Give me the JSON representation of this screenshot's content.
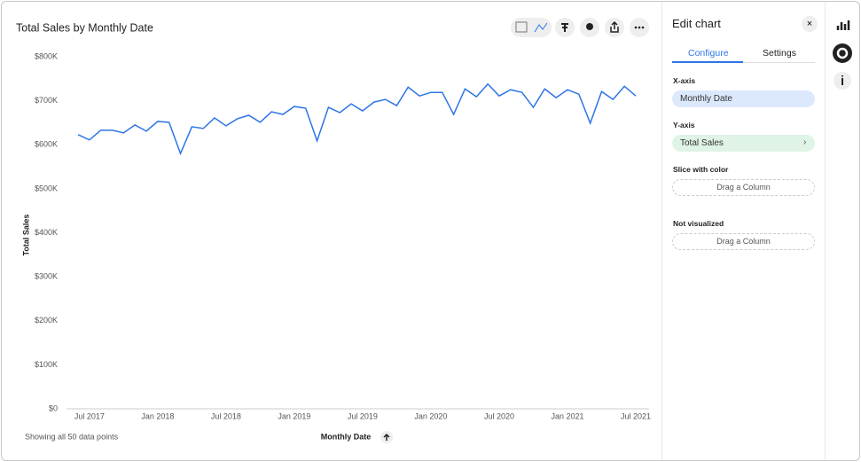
{
  "chart_data": {
    "type": "line",
    "title": "Total Sales by Monthly Date",
    "x": [
      "2017-06",
      "2017-07",
      "2017-08",
      "2017-09",
      "2017-10",
      "2017-11",
      "2017-12",
      "2018-01",
      "2018-02",
      "2018-03",
      "2018-04",
      "2018-05",
      "2018-06",
      "2018-07",
      "2018-08",
      "2018-09",
      "2018-10",
      "2018-11",
      "2018-12",
      "2019-01",
      "2019-02",
      "2019-03",
      "2019-04",
      "2019-05",
      "2019-06",
      "2019-07",
      "2019-08",
      "2019-09",
      "2019-10",
      "2019-11",
      "2019-12",
      "2020-01",
      "2020-02",
      "2020-03",
      "2020-04",
      "2020-05",
      "2020-06",
      "2020-07",
      "2020-08",
      "2020-09",
      "2020-10",
      "2020-11",
      "2020-12",
      "2021-01",
      "2021-02",
      "2021-03",
      "2021-04",
      "2021-05",
      "2021-06",
      "2021-07"
    ],
    "values": [
      623000,
      611000,
      633000,
      633000,
      627000,
      645000,
      631000,
      653000,
      651000,
      580000,
      641000,
      637000,
      661000,
      643000,
      659000,
      667000,
      651000,
      675000,
      669000,
      687000,
      683000,
      609000,
      685000,
      673000,
      693000,
      677000,
      697000,
      703000,
      689000,
      731000,
      711000,
      719000,
      719000,
      669000,
      727000,
      709000,
      738000,
      711000,
      725000,
      719000,
      685000,
      727000,
      707000,
      725000,
      715000,
      649000,
      721000,
      703000,
      733000,
      711000
    ],
    "color": "#2e75e6",
    "xlim": [
      "2017-06",
      "2021-07"
    ],
    "xticks": [
      {
        "value": "2017-07",
        "label": "Jul 2017"
      },
      {
        "value": "2018-01",
        "label": "Jan 2018"
      },
      {
        "value": "2018-07",
        "label": "Jul 2018"
      },
      {
        "value": "2019-01",
        "label": "Jan 2019"
      },
      {
        "value": "2019-07",
        "label": "Jul 2019"
      },
      {
        "value": "2020-01",
        "label": "Jan 2020"
      },
      {
        "value": "2020-07",
        "label": "Jul 2020"
      },
      {
        "value": "2021-01",
        "label": "Jan 2021"
      },
      {
        "value": "2021-07",
        "label": "Jul 2021"
      }
    ],
    "ylim": [
      0,
      800000
    ],
    "yticks": [
      {
        "value": 0,
        "label": "$0"
      },
      {
        "value": 100000,
        "label": "$100K"
      },
      {
        "value": 200000,
        "label": "$200K"
      },
      {
        "value": 300000,
        "label": "$300K"
      },
      {
        "value": 400000,
        "label": "$400K"
      },
      {
        "value": 500000,
        "label": "$500K"
      },
      {
        "value": 600000,
        "label": "$600K"
      },
      {
        "value": 700000,
        "label": "$700K"
      },
      {
        "value": 800000,
        "label": "$800K"
      }
    ],
    "xlabel": "Monthly Date",
    "ylabel": "Total Sales",
    "footer": "Showing all 50 data points"
  },
  "panel": {
    "title": "Edit chart",
    "tabs": [
      "Configure",
      "Settings"
    ],
    "x_axis": {
      "label": "X-axis",
      "column": "Monthly Date"
    },
    "y_axis": {
      "label": "Y-axis",
      "column": "Total Sales"
    },
    "slice": {
      "label": "Slice with color",
      "placeholder": "Drag a Column"
    },
    "not_visualized": {
      "label": "Not visualized",
      "placeholder": "Drag a Column"
    }
  }
}
